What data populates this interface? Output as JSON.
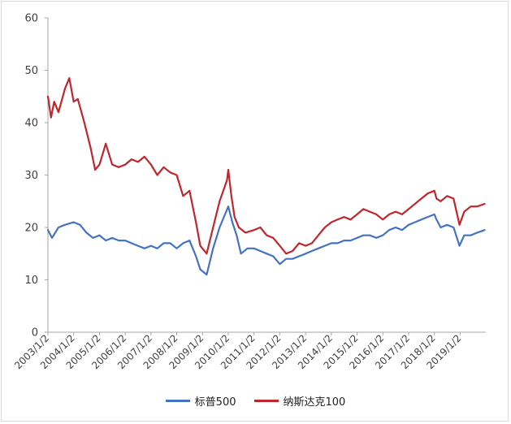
{
  "chart_data": {
    "type": "line",
    "title": "",
    "xlabel": "",
    "ylabel": "",
    "ylim": [
      0,
      60
    ],
    "yticks": [
      0,
      10,
      20,
      30,
      40,
      50,
      60
    ],
    "xlim": [
      "2003-01-02",
      "2020-01-01"
    ],
    "xtick_labels": [
      "2003/1/2",
      "2004/1/2",
      "2005/1/2",
      "2006/1/2",
      "2007/1/2",
      "2008/1/2",
      "2009/1/2",
      "2010/1/2",
      "2011/1/2",
      "2012/1/2",
      "2013/1/2",
      "2014/1/2",
      "2015/1/2",
      "2016/1/2",
      "2017/1/2",
      "2018/1/2",
      "2019/1/2"
    ],
    "xtick_dates": [
      "2003-01-02",
      "2004-01-02",
      "2005-01-02",
      "2006-01-02",
      "2007-01-02",
      "2008-01-02",
      "2009-01-02",
      "2010-01-02",
      "2011-01-02",
      "2012-01-02",
      "2013-01-02",
      "2014-01-02",
      "2015-01-02",
      "2016-01-02",
      "2017-01-02",
      "2018-01-02",
      "2019-01-02"
    ],
    "grid": false,
    "legend_position": "bottom",
    "series": [
      {
        "name": "标普500",
        "color": "#4472c4",
        "x": [
          "2003-01-02",
          "2003-03-01",
          "2003-06-01",
          "2003-09-01",
          "2004-01-02",
          "2004-04-01",
          "2004-07-01",
          "2004-10-01",
          "2005-01-02",
          "2005-04-01",
          "2005-07-01",
          "2005-10-01",
          "2006-01-02",
          "2006-04-01",
          "2006-07-01",
          "2006-10-01",
          "2007-01-02",
          "2007-04-01",
          "2007-07-01",
          "2007-10-01",
          "2008-01-02",
          "2008-04-01",
          "2008-07-01",
          "2008-10-01",
          "2008-12-01",
          "2009-03-01",
          "2009-06-01",
          "2009-09-01",
          "2010-01-02",
          "2010-03-01",
          "2010-05-01",
          "2010-07-01",
          "2010-10-01",
          "2011-01-02",
          "2011-04-01",
          "2011-07-01",
          "2011-10-01",
          "2012-01-02",
          "2012-04-01",
          "2012-07-01",
          "2012-10-01",
          "2013-01-02",
          "2013-04-01",
          "2013-07-01",
          "2013-10-01",
          "2014-01-02",
          "2014-04-01",
          "2014-07-01",
          "2014-10-01",
          "2015-01-02",
          "2015-04-01",
          "2015-07-01",
          "2015-10-01",
          "2016-01-02",
          "2016-04-01",
          "2016-07-01",
          "2016-10-01",
          "2017-01-02",
          "2017-04-01",
          "2017-07-01",
          "2017-10-01",
          "2018-01-02",
          "2018-02-01",
          "2018-04-01",
          "2018-07-01",
          "2018-10-01",
          "2018-12-24",
          "2019-03-01",
          "2019-06-01",
          "2019-09-01",
          "2019-12-15"
        ],
        "values": [
          19.5,
          18.0,
          20.0,
          20.5,
          21.0,
          20.5,
          19.0,
          18.0,
          18.5,
          17.5,
          18.0,
          17.5,
          17.5,
          17.0,
          16.5,
          16.0,
          16.5,
          16.0,
          17.0,
          17.0,
          16.0,
          17.0,
          17.5,
          14.5,
          12.0,
          11.0,
          16.0,
          20.0,
          24.0,
          21.0,
          18.5,
          15.0,
          16.0,
          16.0,
          15.5,
          15.0,
          14.5,
          13.0,
          14.0,
          14.0,
          14.5,
          15.0,
          15.5,
          16.0,
          16.5,
          17.0,
          17.0,
          17.5,
          17.5,
          18.0,
          18.5,
          18.5,
          18.0,
          18.5,
          19.5,
          20.0,
          19.5,
          20.5,
          21.0,
          21.5,
          22.0,
          22.5,
          21.5,
          20.0,
          20.5,
          20.0,
          16.5,
          18.5,
          18.5,
          19.0,
          19.5
        ]
      },
      {
        "name": "纳斯达克100",
        "color": "#c0262c",
        "x": [
          "2003-01-02",
          "2003-02-15",
          "2003-04-01",
          "2003-06-01",
          "2003-09-01",
          "2003-11-01",
          "2004-01-02",
          "2004-03-01",
          "2004-06-01",
          "2004-09-01",
          "2004-11-01",
          "2005-01-02",
          "2005-04-01",
          "2005-07-01",
          "2005-10-01",
          "2006-01-02",
          "2006-04-01",
          "2006-07-01",
          "2006-10-01",
          "2007-01-02",
          "2007-04-01",
          "2007-07-01",
          "2007-10-01",
          "2008-01-02",
          "2008-04-01",
          "2008-07-01",
          "2008-10-01",
          "2008-12-01",
          "2009-03-01",
          "2009-06-01",
          "2009-09-01",
          "2009-12-15",
          "2010-01-02",
          "2010-02-15",
          "2010-04-01",
          "2010-06-01",
          "2010-09-01",
          "2011-01-02",
          "2011-04-01",
          "2011-07-01",
          "2011-10-01",
          "2012-01-02",
          "2012-04-01",
          "2012-07-01",
          "2012-10-01",
          "2013-01-02",
          "2013-04-01",
          "2013-07-01",
          "2013-10-01",
          "2014-01-02",
          "2014-04-01",
          "2014-07-01",
          "2014-10-01",
          "2015-01-02",
          "2015-04-01",
          "2015-07-01",
          "2015-10-01",
          "2016-01-02",
          "2016-04-01",
          "2016-07-01",
          "2016-10-01",
          "2017-01-02",
          "2017-04-01",
          "2017-07-01",
          "2017-10-01",
          "2018-01-02",
          "2018-02-01",
          "2018-04-01",
          "2018-07-01",
          "2018-10-01",
          "2018-12-24",
          "2019-03-01",
          "2019-06-01",
          "2019-09-01",
          "2019-12-15"
        ],
        "values": [
          45.0,
          41.0,
          44.0,
          42.0,
          46.5,
          48.5,
          44.0,
          44.5,
          40.0,
          35.0,
          31.0,
          32.0,
          36.0,
          32.0,
          31.5,
          32.0,
          33.0,
          32.5,
          33.5,
          32.0,
          30.0,
          31.5,
          30.5,
          30.0,
          26.0,
          27.0,
          21.0,
          16.5,
          15.0,
          20.0,
          25.0,
          29.0,
          31.0,
          26.0,
          22.0,
          20.0,
          19.0,
          19.5,
          20.0,
          18.5,
          18.0,
          16.5,
          15.0,
          15.5,
          17.0,
          16.5,
          17.0,
          18.5,
          20.0,
          21.0,
          21.5,
          22.0,
          21.5,
          22.5,
          23.5,
          23.0,
          22.5,
          21.5,
          22.5,
          23.0,
          22.5,
          23.5,
          24.5,
          25.5,
          26.5,
          27.0,
          25.5,
          25.0,
          26.0,
          25.5,
          20.5,
          23.0,
          24.0,
          24.0,
          24.5
        ]
      }
    ]
  }
}
